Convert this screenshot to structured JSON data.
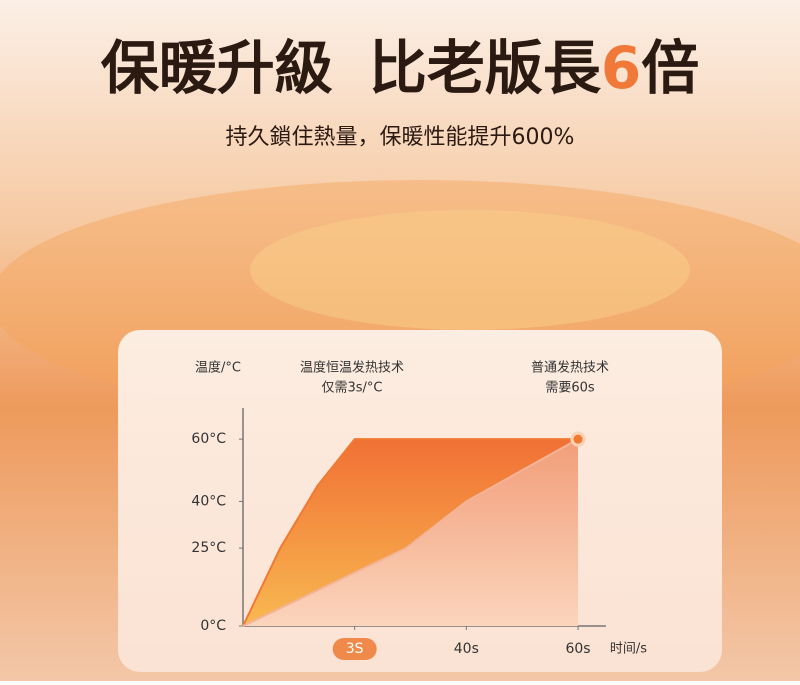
{
  "header": {
    "title": [
      "保暖升級",
      "比老版長",
      "6",
      "倍"
    ],
    "subtitle": "持久鎖住熱量，保暖性能提升600%"
  },
  "chart_data": {
    "type": "area",
    "ylabel": "温度/°C",
    "xlabel": "时间/s",
    "xlim": [
      0,
      65
    ],
    "ylim": [
      0,
      70
    ],
    "xticks": [
      {
        "value": 3,
        "label": "3S"
      },
      {
        "value": 40,
        "label": "40s"
      },
      {
        "value": 60,
        "label": "60s"
      }
    ],
    "yticks": [
      {
        "value": 0,
        "label": "0°C"
      },
      {
        "value": 25,
        "label": "25°C"
      },
      {
        "value": 40,
        "label": "40°C"
      },
      {
        "value": 60,
        "label": "60°C"
      }
    ],
    "series": [
      {
        "name": "温度恒温发热技术",
        "note": "仅需3s/°C",
        "color": "#f07a30",
        "x": [
          0,
          1,
          2,
          3,
          60
        ],
        "values": [
          0,
          25,
          45,
          60,
          60
        ]
      },
      {
        "name": "普通发热技术",
        "note": "需要60s",
        "color": "#f3b49a",
        "x": [
          0,
          20,
          40,
          60
        ],
        "values": [
          0,
          25,
          40,
          60
        ]
      }
    ]
  }
}
